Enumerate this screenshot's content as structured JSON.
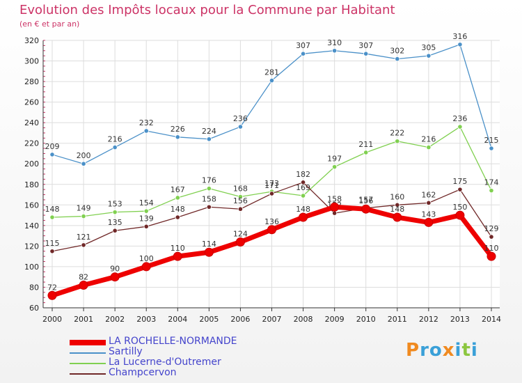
{
  "title": "Evolution des Impôts locaux pour la Commune par Habitant",
  "subtitle": "(en € et par an)",
  "logo": "Proxiti",
  "chart_data": {
    "type": "line",
    "title": "Evolution des Impôts locaux pour la Commune par Habitant",
    "subtitle": "(en € et par an)",
    "xlabel": "",
    "ylabel": "",
    "x": [
      2000,
      2001,
      2002,
      2003,
      2004,
      2005,
      2006,
      2007,
      2008,
      2009,
      2010,
      2011,
      2012,
      2013,
      2014
    ],
    "ylim": [
      60,
      320
    ],
    "yticks": [
      60,
      80,
      100,
      120,
      140,
      160,
      180,
      200,
      220,
      240,
      260,
      280,
      300,
      320
    ],
    "grid": true,
    "legend_position": "bottom-left",
    "series": [
      {
        "name": "LA ROCHELLE-NORMANDE",
        "color": "#ee0000",
        "values": [
          72,
          82,
          90,
          100,
          110,
          114,
          124,
          136,
          148,
          158,
          156,
          148,
          143,
          150,
          110
        ]
      },
      {
        "name": "Sartilly",
        "color": "#4a90c8",
        "values": [
          209,
          200,
          216,
          232,
          226,
          224,
          236,
          281,
          307,
          310,
          307,
          302,
          305,
          316,
          215
        ]
      },
      {
        "name": "La Lucerne-d'Outremer",
        "color": "#80d050",
        "values": [
          148,
          149,
          153,
          154,
          167,
          176,
          168,
          173,
          169,
          197,
          211,
          222,
          216,
          236,
          174
        ]
      },
      {
        "name": "Champcervon",
        "color": "#702828",
        "values": [
          115,
          121,
          135,
          139,
          148,
          158,
          156,
          171,
          182,
          152,
          157,
          160,
          162,
          175,
          129
        ]
      }
    ]
  }
}
